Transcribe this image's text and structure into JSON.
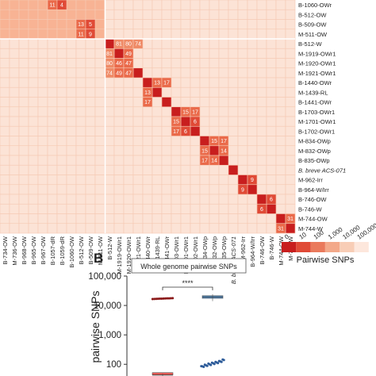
{
  "panel_b_label": "B",
  "chart_data": [
    {
      "type": "heatmap",
      "title": "",
      "cols": [
        "B-734-OW",
        "M-736-OW",
        "B-968-OW",
        "B-965-OW",
        "B-967-OW",
        "B-1057-dR",
        "B-1059-dR",
        "B-1060-OW",
        "B-512-OW",
        "B-509-OW",
        "M-511-OW",
        "B-512-W",
        "M-1919-OWr1",
        "M-1920-OWr1",
        "B-1921-OWr1",
        "B-1440-OWr",
        "M-1439-RL",
        "B-1441-OWr",
        "B-1703-OWr1",
        "M-1701-OWr1",
        "B-1702-OWr1",
        "B-834-OWp",
        "M-832-OWp",
        "B-835-OWp",
        "B. breve ACS-071",
        "M-962-Irr",
        "B-964-W/Irr",
        "B-746-OW",
        "B-746-W",
        "M-744-OW",
        "M-744-W"
      ],
      "rows_visible": [
        "B-1060-OWr",
        "B-512-OW",
        "B-509-OW",
        "M-511-OW",
        "B-512-W",
        "M-1919-OWr1",
        "M-1920-OWr1",
        "M-1921-OWr1",
        "B-1440-OWr",
        "M-1439-RL",
        "B-1441-OWr",
        "B-1703-OWr1",
        "M-1701-OWr1",
        "B-1702-OWr1",
        "M-834-OWp",
        "M-832-OWp",
        "B-835-OWp",
        "B. breve ACS-071",
        "M-962-Irr",
        "B-964-W/Irr",
        "B-746-OW",
        "B-746-W",
        "M-744-OW",
        "M-744-W"
      ],
      "cells": [
        {
          "row": "B-1060-OWr",
          "col": "B-1057-dR",
          "value": 11
        },
        {
          "row": "B-1060-OWr",
          "col": "B-1059-dR",
          "value": 4
        },
        {
          "row": "B-509-OW",
          "col": "B-512-OW",
          "value": 13
        },
        {
          "row": "B-509-OW",
          "col": "B-509-OW",
          "value": 5
        },
        {
          "row": "M-511-OW",
          "col": "B-512-OW",
          "value": 11
        },
        {
          "row": "M-511-OW",
          "col": "B-509-OW",
          "value": 9
        },
        {
          "row": "B-512-W",
          "col": "M-1919-OWr1",
          "value": 81
        },
        {
          "row": "B-512-W",
          "col": "M-1920-OWr1",
          "value": 80
        },
        {
          "row": "B-512-W",
          "col": "B-1921-OWr1",
          "value": 74
        },
        {
          "row": "M-1919-OWr1",
          "col": "B-512-W",
          "value": 81
        },
        {
          "row": "M-1919-OWr1",
          "col": "M-1920-OWr1",
          "value": 49
        },
        {
          "row": "M-1920-OWr1",
          "col": "B-512-W",
          "value": 80
        },
        {
          "row": "M-1920-OWr1",
          "col": "M-1919-OWr1",
          "value": 46
        },
        {
          "row": "M-1920-OWr1",
          "col": "M-1920-OWr1",
          "value": 47
        },
        {
          "row": "M-1921-OWr1",
          "col": "B-512-W",
          "value": 74
        },
        {
          "row": "M-1921-OWr1",
          "col": "M-1919-OWr1",
          "value": 49
        },
        {
          "row": "M-1921-OWr1",
          "col": "M-1920-OWr1",
          "value": 47
        },
        {
          "row": "B-1440-OWr",
          "col": "M-1439-RL",
          "value": 13
        },
        {
          "row": "B-1440-OWr",
          "col": "B-1441-OWr",
          "value": 17
        },
        {
          "row": "M-1439-RL",
          "col": "B-1440-OWr",
          "value": 13
        },
        {
          "row": "B-1441-OWr",
          "col": "B-1440-OWr",
          "value": 17
        },
        {
          "row": "B-1703-OWr1",
          "col": "M-1701-OWr1",
          "value": 15
        },
        {
          "row": "B-1703-OWr1",
          "col": "B-1702-OWr1",
          "value": 17
        },
        {
          "row": "M-1701-OWr1",
          "col": "B-1703-OWr1",
          "value": 15
        },
        {
          "row": "M-1701-OWr1",
          "col": "B-1702-OWr1",
          "value": 6
        },
        {
          "row": "B-1702-OWr1",
          "col": "B-1703-OWr1",
          "value": 17
        },
        {
          "row": "B-1702-OWr1",
          "col": "M-1701-OWr1",
          "value": 6
        },
        {
          "row": "M-834-OWp",
          "col": "M-832-OWp",
          "value": 15
        },
        {
          "row": "M-834-OWp",
          "col": "B-835-OWp",
          "value": 17
        },
        {
          "row": "M-832-OWp",
          "col": "B-834-OWp",
          "value": 15
        },
        {
          "row": "M-832-OWp",
          "col": "B-835-OWp",
          "value": 14
        },
        {
          "row": "B-835-OWp",
          "col": "B-834-OWp",
          "value": 17
        },
        {
          "row": "B-835-OWp",
          "col": "M-832-OWp",
          "value": 14
        },
        {
          "row": "M-962-Irr",
          "col": "B-964-W/Irr",
          "value": 9
        },
        {
          "row": "B-964-W/Irr",
          "col": "M-962-Irr",
          "value": 9
        },
        {
          "row": "B-746-OW",
          "col": "B-746-W",
          "value": 6
        },
        {
          "row": "B-746-W",
          "col": "B-746-OW",
          "value": 6
        },
        {
          "row": "M-744-OW",
          "col": "M-744-W",
          "value": 31
        },
        {
          "row": "M-744-W",
          "col": "M-744-OW",
          "value": 31
        }
      ],
      "color_scale": {
        "label": "Pairwise SNPs",
        "scale": "log",
        "ticks": [
          "0",
          "10",
          "100",
          "1,000",
          "10,000",
          "100,000"
        ],
        "colors": [
          "#c81e1e",
          "#e04a36",
          "#ea7a5c",
          "#f3a98a",
          "#f8cdb6",
          "#fde7dc"
        ]
      }
    },
    {
      "type": "scatter",
      "title": "Whole genome pairwise SNPs",
      "ylabel": "pairwise SNPs",
      "yscale": "log",
      "ylim": [
        40,
        100000
      ],
      "yticks": [
        "100",
        "1,000",
        "10,000",
        "100,000"
      ],
      "significance": "****",
      "groups": [
        {
          "position": 1,
          "points": [
            16500,
            16700,
            16800,
            16900,
            17000,
            17100,
            17200,
            17300,
            17400,
            17500,
            17600,
            17700
          ],
          "color": "#8b1a1a",
          "box": {
            "low": 40,
            "q1": 40,
            "median": 43,
            "q3": 46,
            "high": 48,
            "color": "#e85b55"
          }
        },
        {
          "position": 2,
          "points": [
            80,
            85,
            88,
            90,
            92,
            95,
            98,
            100,
            102,
            105,
            108,
            110,
            112,
            115,
            118,
            120,
            125,
            130,
            135,
            140
          ],
          "color": "#2d5b99",
          "box": {
            "low": 14000,
            "q1": 17500,
            "median": 19500,
            "q3": 21500,
            "high": 24000,
            "color": "#5b9bd5"
          }
        }
      ]
    }
  ]
}
